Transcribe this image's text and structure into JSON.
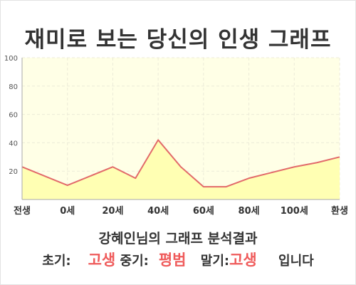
{
  "page": {
    "title": "재미로 보는 당신의 인생 그래프",
    "subtitle": "강혜인님의 그래프 분석결과",
    "summary": {
      "early_label": "초기:",
      "early_value": "고생",
      "mid_label": "중기:",
      "mid_value": "평범",
      "late_label": "말기:",
      "late_value": "고생",
      "suffix": "입니다"
    }
  },
  "colors": {
    "plot_bg": "#ffffe6",
    "area_fill": "#ffffb3",
    "line": "#e26a6a",
    "grid": "#ecebd8",
    "highlight": "#ef5a5a"
  },
  "chart_data": {
    "type": "area",
    "x_tick_labels": [
      "전생",
      "0세",
      "20세",
      "40세",
      "60세",
      "80세",
      "100세",
      "환생"
    ],
    "x_tick_positions": [
      -20,
      0,
      20,
      40,
      60,
      80,
      100,
      120
    ],
    "y_ticks": [
      20,
      40,
      60,
      80,
      100
    ],
    "ylim": [
      0,
      100
    ],
    "xlim": [
      -20,
      120
    ],
    "grid": true,
    "legend": "none",
    "series": [
      {
        "x": [
          -20,
          0,
          20,
          30,
          40,
          50,
          60,
          70,
          80,
          90,
          100,
          110,
          120
        ],
        "values": [
          23,
          10,
          23,
          15,
          42,
          23,
          9,
          9,
          15,
          19,
          23,
          26,
          30
        ]
      }
    ]
  }
}
